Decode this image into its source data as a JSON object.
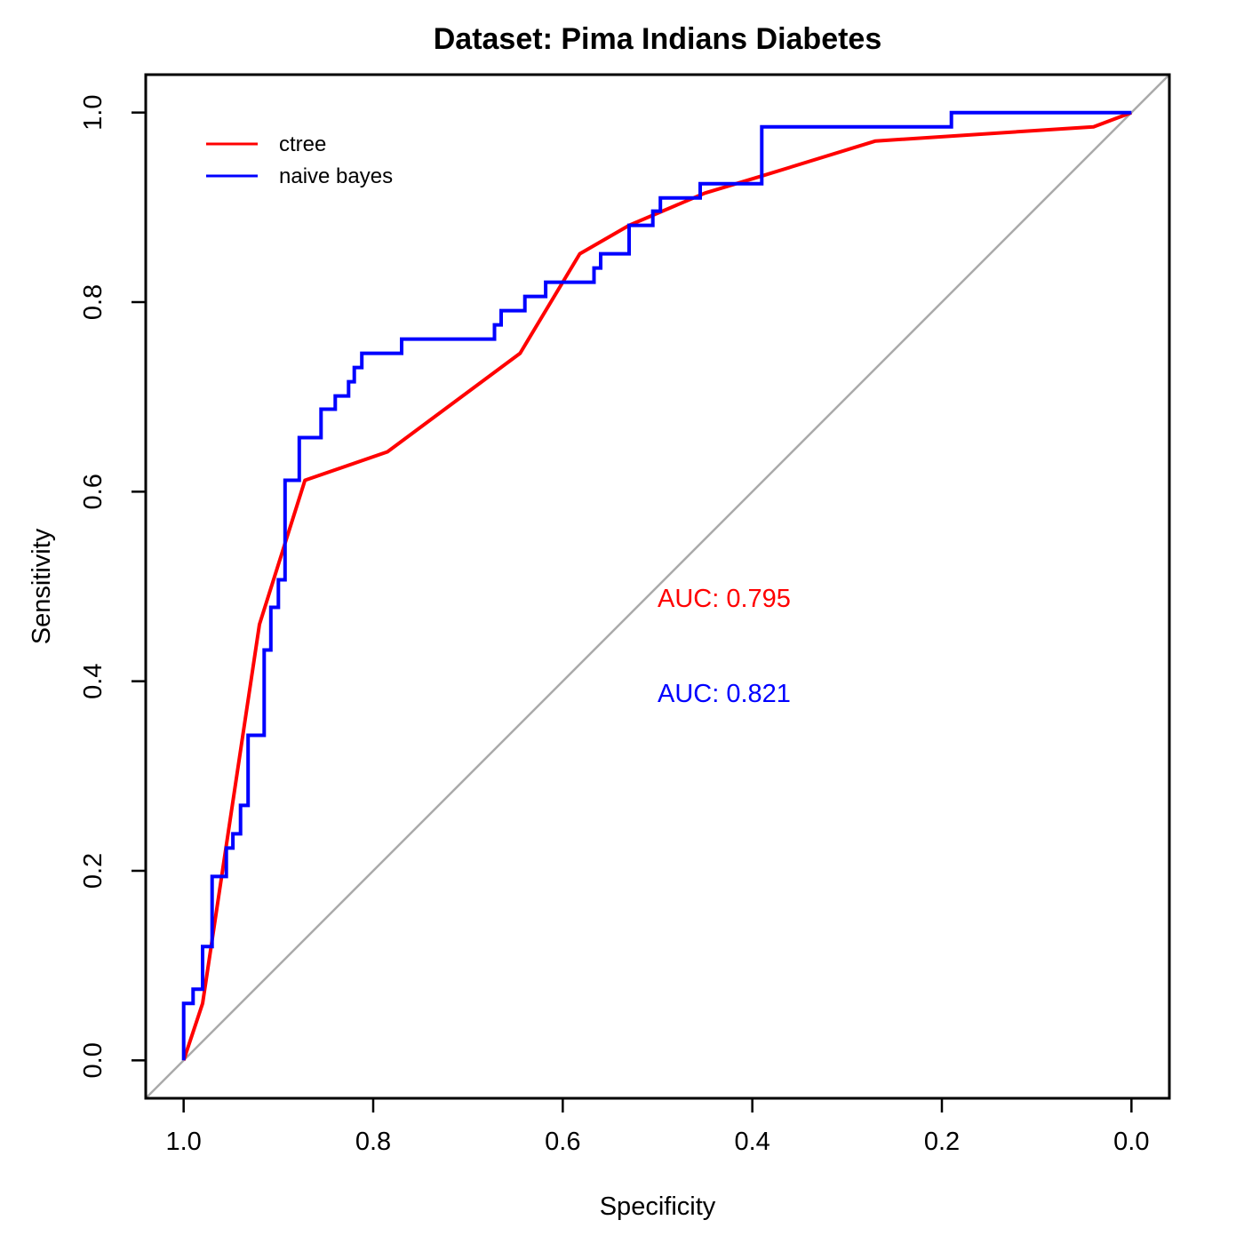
{
  "chart_data": {
    "type": "line",
    "title": "Dataset: Pima Indians Diabetes",
    "xlabel": "Specificity",
    "ylabel": "Sensitivity",
    "x_reversed": true,
    "xlim": [
      1.04,
      -0.04
    ],
    "ylim": [
      -0.04,
      1.04
    ],
    "x_ticks": [
      "1.0",
      "0.8",
      "0.6",
      "0.4",
      "0.2",
      "0.0"
    ],
    "y_ticks": [
      "0.0",
      "0.2",
      "0.4",
      "0.6",
      "0.8",
      "1.0"
    ],
    "grid": false,
    "legend_position": "top-left",
    "reference_line": {
      "from": [
        1.0,
        0.0
      ],
      "to": [
        0.0,
        1.0
      ],
      "color": "#aaaaaa"
    },
    "series": [
      {
        "name": "ctree",
        "color": "#ff0000",
        "auc_label": "AUC: 0.795",
        "step": false,
        "points": [
          [
            1.0,
            0.0
          ],
          [
            0.98,
            0.06
          ],
          [
            0.92,
            0.46
          ],
          [
            0.872,
            0.612
          ],
          [
            0.785,
            0.642
          ],
          [
            0.645,
            0.746
          ],
          [
            0.582,
            0.851
          ],
          [
            0.53,
            0.881
          ],
          [
            0.45,
            0.915
          ],
          [
            0.39,
            0.933
          ],
          [
            0.27,
            0.97
          ],
          [
            0.04,
            0.985
          ],
          [
            0.0,
            1.0
          ]
        ]
      },
      {
        "name": "naive bayes",
        "color": "#0000ff",
        "auc_label": "AUC: 0.821",
        "step": true,
        "points": [
          [
            1.0,
            0.0
          ],
          [
            1.0,
            0.06
          ],
          [
            0.99,
            0.06
          ],
          [
            0.99,
            0.075
          ],
          [
            0.98,
            0.075
          ],
          [
            0.98,
            0.12
          ],
          [
            0.97,
            0.12
          ],
          [
            0.97,
            0.194
          ],
          [
            0.955,
            0.194
          ],
          [
            0.955,
            0.224
          ],
          [
            0.948,
            0.224
          ],
          [
            0.948,
            0.239
          ],
          [
            0.94,
            0.239
          ],
          [
            0.94,
            0.269
          ],
          [
            0.932,
            0.269
          ],
          [
            0.932,
            0.343
          ],
          [
            0.915,
            0.343
          ],
          [
            0.915,
            0.433
          ],
          [
            0.908,
            0.433
          ],
          [
            0.908,
            0.478
          ],
          [
            0.9,
            0.478
          ],
          [
            0.9,
            0.507
          ],
          [
            0.893,
            0.507
          ],
          [
            0.893,
            0.612
          ],
          [
            0.878,
            0.612
          ],
          [
            0.878,
            0.657
          ],
          [
            0.855,
            0.657
          ],
          [
            0.855,
            0.687
          ],
          [
            0.84,
            0.687
          ],
          [
            0.84,
            0.701
          ],
          [
            0.826,
            0.701
          ],
          [
            0.826,
            0.716
          ],
          [
            0.82,
            0.716
          ],
          [
            0.82,
            0.731
          ],
          [
            0.812,
            0.731
          ],
          [
            0.812,
            0.746
          ],
          [
            0.77,
            0.746
          ],
          [
            0.77,
            0.761
          ],
          [
            0.672,
            0.761
          ],
          [
            0.672,
            0.776
          ],
          [
            0.665,
            0.776
          ],
          [
            0.665,
            0.791
          ],
          [
            0.64,
            0.791
          ],
          [
            0.64,
            0.806
          ],
          [
            0.618,
            0.806
          ],
          [
            0.618,
            0.821
          ],
          [
            0.567,
            0.821
          ],
          [
            0.567,
            0.836
          ],
          [
            0.56,
            0.836
          ],
          [
            0.56,
            0.851
          ],
          [
            0.53,
            0.851
          ],
          [
            0.53,
            0.881
          ],
          [
            0.505,
            0.881
          ],
          [
            0.505,
            0.896
          ],
          [
            0.497,
            0.896
          ],
          [
            0.497,
            0.91
          ],
          [
            0.455,
            0.91
          ],
          [
            0.455,
            0.925
          ],
          [
            0.39,
            0.925
          ],
          [
            0.39,
            0.985
          ],
          [
            0.19,
            0.985
          ],
          [
            0.19,
            1.0
          ],
          [
            0.0,
            1.0
          ]
        ]
      }
    ]
  }
}
